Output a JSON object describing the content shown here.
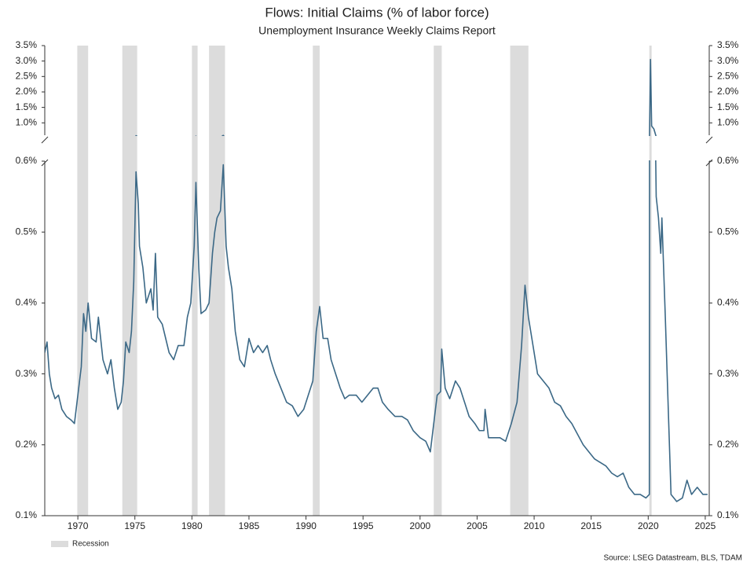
{
  "chart_data": {
    "type": "line",
    "title": "Flows: Initial Claims (% of labor force)",
    "subtitle": "Unemployment Insurance Weekly Claims Report",
    "source": "Source: LSEG Datastream, BLS, TDAM",
    "recession_label": "Recession",
    "recession_color": "#dcdcdc",
    "color": "#3b6886",
    "recessions": [
      [
        1969.95,
        1970.9
      ],
      [
        1973.9,
        1975.2
      ],
      [
        1980.0,
        1980.5
      ],
      [
        1981.5,
        1982.9
      ],
      [
        1990.6,
        1991.2
      ],
      [
        2001.2,
        2001.9
      ],
      [
        2007.9,
        2009.5
      ],
      [
        2020.1,
        2020.3
      ]
    ],
    "xlim": [
      1967.1,
      2025.35
    ],
    "xticks": [
      1970,
      1975,
      1980,
      1985,
      1990,
      1995,
      2000,
      2005,
      2010,
      2015,
      2020,
      2025
    ],
    "panels": [
      {
        "ylim": [
          0.6,
          3.5
        ],
        "yticks": [
          {
            "value": 1.0,
            "label": "1.0%"
          },
          {
            "value": 1.5,
            "label": "1.5%"
          },
          {
            "value": 2.0,
            "label": "2.0%"
          },
          {
            "value": 2.5,
            "label": "2.5%"
          },
          {
            "value": 3.0,
            "label": "3.0%"
          },
          {
            "value": 3.5,
            "label": "3.5%"
          }
        ]
      },
      {
        "ylim": [
          0.1,
          0.6
        ],
        "yticks": [
          {
            "value": 0.1,
            "label": "0.1%"
          },
          {
            "value": 0.2,
            "label": "0.2%"
          },
          {
            "value": 0.3,
            "label": "0.3%"
          },
          {
            "value": 0.4,
            "label": "0.4%"
          },
          {
            "value": 0.5,
            "label": "0.5%"
          },
          {
            "value": 0.6,
            "label": "0.6%"
          }
        ]
      }
    ],
    "x": [
      1967.1,
      1967.3,
      1967.5,
      1967.7,
      1968.0,
      1968.3,
      1968.6,
      1969.0,
      1969.4,
      1969.7,
      1970.0,
      1970.3,
      1970.5,
      1970.7,
      1970.9,
      1971.2,
      1971.6,
      1971.8,
      1972.2,
      1972.6,
      1972.9,
      1973.2,
      1973.5,
      1973.8,
      1974.0,
      1974.2,
      1974.5,
      1974.7,
      1974.9,
      1975.1,
      1975.3,
      1975.4,
      1975.7,
      1976.0,
      1976.4,
      1976.6,
      1976.8,
      1977.0,
      1977.4,
      1977.7,
      1978.0,
      1978.4,
      1978.8,
      1979.3,
      1979.6,
      1979.9,
      1980.2,
      1980.35,
      1980.6,
      1980.8,
      1981.2,
      1981.5,
      1981.8,
      1982.0,
      1982.2,
      1982.5,
      1982.75,
      1983.0,
      1983.2,
      1983.5,
      1983.8,
      1984.2,
      1984.6,
      1985.0,
      1985.4,
      1985.8,
      1986.2,
      1986.6,
      1986.9,
      1987.3,
      1987.8,
      1988.3,
      1988.8,
      1989.3,
      1989.8,
      1990.2,
      1990.6,
      1990.9,
      1991.2,
      1991.5,
      1991.9,
      1992.2,
      1992.6,
      1993.0,
      1993.4,
      1993.8,
      1994.4,
      1994.9,
      1995.4,
      1995.9,
      1996.3,
      1996.7,
      1997.2,
      1997.8,
      1998.4,
      1998.9,
      1999.4,
      2000.0,
      2000.5,
      2000.9,
      2001.2,
      2001.5,
      2001.8,
      2001.9,
      2002.2,
      2002.6,
      2003.1,
      2003.5,
      2003.9,
      2004.3,
      2004.8,
      2005.2,
      2005.6,
      2005.7,
      2006.0,
      2006.5,
      2007.0,
      2007.5,
      2008.0,
      2008.5,
      2008.9,
      2009.2,
      2009.5,
      2009.9,
      2010.3,
      2010.8,
      2011.3,
      2011.8,
      2012.3,
      2012.8,
      2013.3,
      2013.8,
      2014.3,
      2014.8,
      2015.3,
      2015.8,
      2016.3,
      2016.8,
      2017.3,
      2017.8,
      2018.3,
      2018.8,
      2019.3,
      2019.8,
      2020.1,
      2020.2,
      2020.3,
      2020.5,
      2020.7,
      2020.9,
      2021.1,
      2021.2,
      2021.5,
      2021.8,
      2022.0,
      2022.5,
      2023.0,
      2023.4,
      2023.8,
      2024.3,
      2024.8,
      2025.2
    ],
    "values": [
      0.33,
      0.345,
      0.3,
      0.28,
      0.265,
      0.27,
      0.25,
      0.24,
      0.235,
      0.23,
      0.27,
      0.31,
      0.385,
      0.36,
      0.4,
      0.35,
      0.345,
      0.38,
      0.32,
      0.3,
      0.32,
      0.28,
      0.25,
      0.26,
      0.29,
      0.345,
      0.33,
      0.36,
      0.43,
      0.585,
      0.54,
      0.48,
      0.45,
      0.4,
      0.42,
      0.39,
      0.47,
      0.38,
      0.37,
      0.35,
      0.33,
      0.32,
      0.34,
      0.34,
      0.38,
      0.4,
      0.48,
      0.57,
      0.45,
      0.385,
      0.39,
      0.4,
      0.47,
      0.5,
      0.52,
      0.53,
      0.595,
      0.48,
      0.45,
      0.42,
      0.36,
      0.32,
      0.31,
      0.35,
      0.33,
      0.34,
      0.33,
      0.34,
      0.32,
      0.3,
      0.28,
      0.26,
      0.255,
      0.24,
      0.25,
      0.27,
      0.29,
      0.36,
      0.395,
      0.35,
      0.35,
      0.32,
      0.3,
      0.28,
      0.265,
      0.27,
      0.27,
      0.26,
      0.27,
      0.28,
      0.28,
      0.26,
      0.25,
      0.24,
      0.24,
      0.235,
      0.22,
      0.21,
      0.205,
      0.19,
      0.23,
      0.27,
      0.275,
      0.335,
      0.28,
      0.265,
      0.29,
      0.28,
      0.26,
      0.24,
      0.23,
      0.22,
      0.22,
      0.25,
      0.21,
      0.21,
      0.21,
      0.205,
      0.23,
      0.26,
      0.34,
      0.425,
      0.38,
      0.34,
      0.3,
      0.29,
      0.28,
      0.26,
      0.255,
      0.24,
      0.23,
      0.215,
      0.2,
      0.19,
      0.18,
      0.175,
      0.17,
      0.16,
      0.155,
      0.16,
      0.14,
      0.13,
      0.13,
      0.125,
      0.13,
      3.05,
      0.9,
      0.8,
      0.55,
      0.52,
      0.47,
      0.52,
      0.38,
      0.23,
      0.13,
      0.12,
      0.125,
      0.15,
      0.13,
      0.14,
      0.13,
      0.13
    ]
  }
}
